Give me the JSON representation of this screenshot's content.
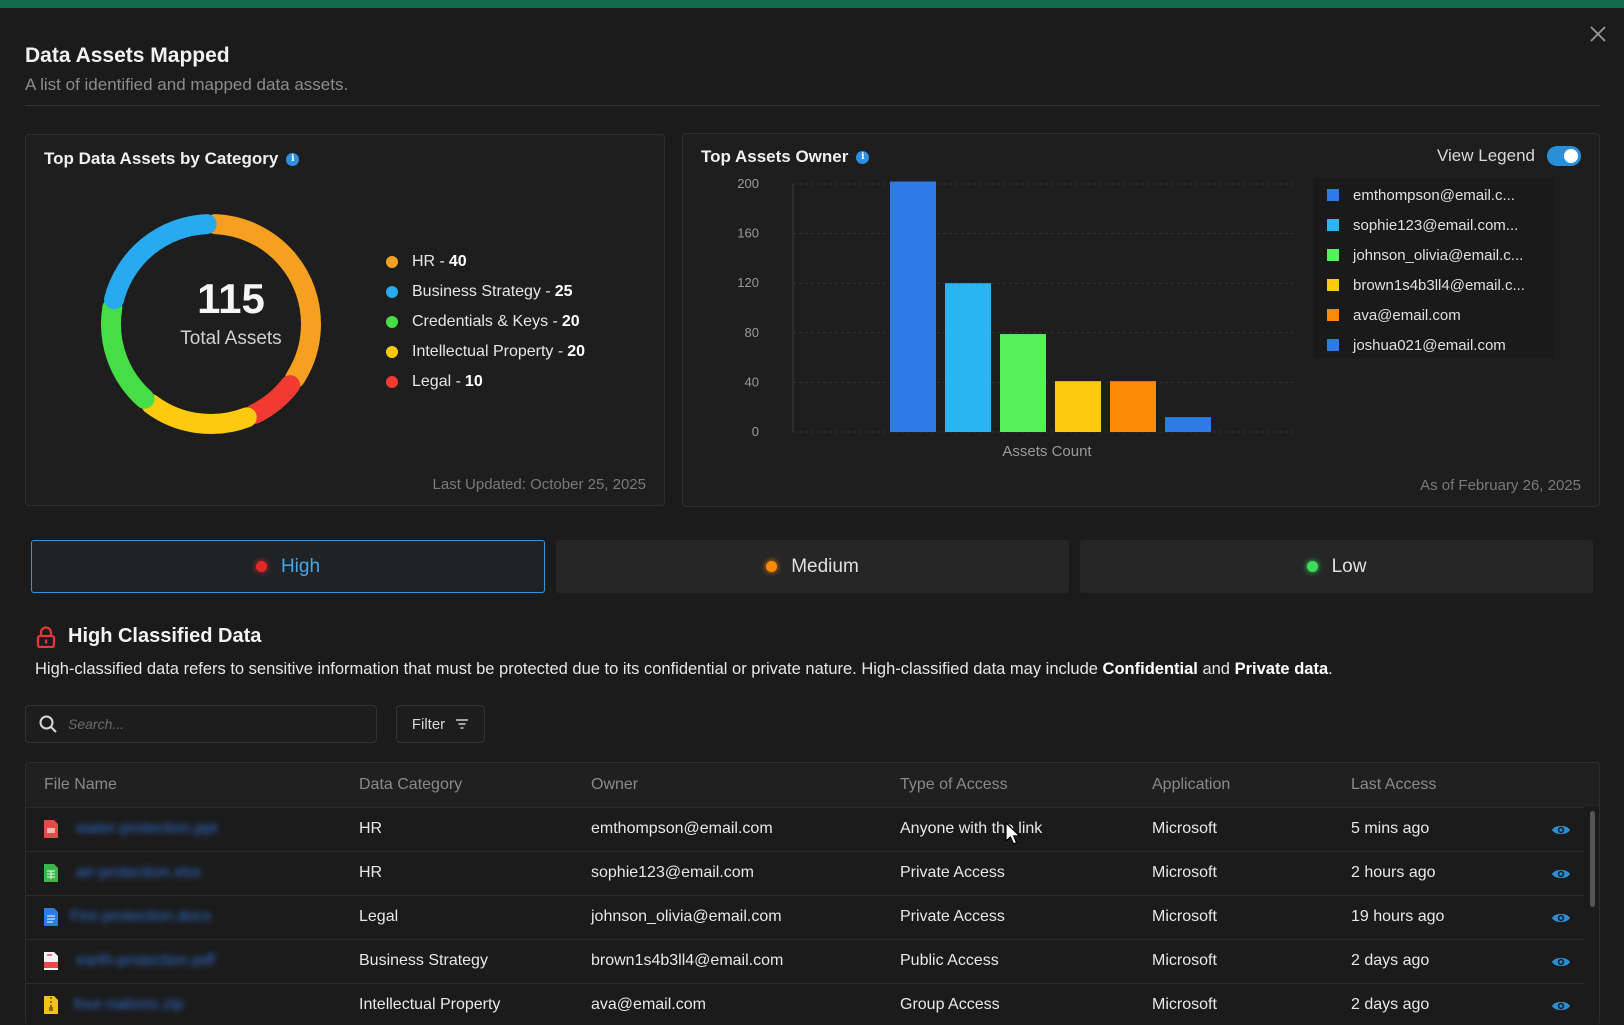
{
  "header": {
    "title": "Data Assets Mapped",
    "subtitle": "A list of identified and mapped data assets."
  },
  "category_card": {
    "title": "Top Data Assets by Category",
    "total_value": "115",
    "total_label": "Total Assets",
    "last_updated": "Last Updated:  October 25, 2025",
    "legend": [
      {
        "label": "HR - ",
        "value": "40",
        "color": "#f5a020"
      },
      {
        "label": "Business Strategy - ",
        "value": "25",
        "color": "#27aaf0"
      },
      {
        "label": "Credentials & Keys - ",
        "value": "20",
        "color": "#45df45"
      },
      {
        "label": "Intellectual Property - ",
        "value": "20",
        "color": "#fcca0e"
      },
      {
        "label": "Legal - ",
        "value": "10",
        "color": "#f23a32"
      }
    ]
  },
  "owner_card": {
    "title": "Top Assets Owner",
    "view_legend_label": "View Legend",
    "as_of": "As of February 26, 2025",
    "legend": [
      {
        "label": "emthompson@email.c...",
        "color": "#2f7be6"
      },
      {
        "label": "sophie123@email.com...",
        "color": "#29b6f0"
      },
      {
        "label": "johnson_olivia@email.c...",
        "color": "#55f05a"
      },
      {
        "label": "brown1s4b3ll4@email.c...",
        "color": "#fcca0e"
      },
      {
        "label": "ava@email.com",
        "color": "#ff8a05"
      },
      {
        "label": "joshua021@email.com",
        "color": "#2f7be6"
      }
    ]
  },
  "chart_data": [
    {
      "type": "pie",
      "title": "Top Data Assets by Category",
      "categories": [
        "HR",
        "Business Strategy",
        "Credentials & Keys",
        "Intellectual Property",
        "Legal"
      ],
      "values": [
        40,
        25,
        20,
        20,
        10
      ],
      "colors": [
        "#f5a020",
        "#27aaf0",
        "#45df45",
        "#fcca0e",
        "#f23a32"
      ],
      "legend": "right"
    },
    {
      "type": "bar",
      "title": "Top Assets Owner",
      "categories": [
        "emthompson@email.c...",
        "sophie123@email.com...",
        "johnson_olivia@email.c...",
        "brown1s4b3ll4@email.c...",
        "ava@email.com",
        "joshua021@email.com"
      ],
      "values": [
        202,
        120,
        79,
        41,
        41,
        12
      ],
      "colors": [
        "#2f7be6",
        "#29b6f0",
        "#55f05a",
        "#fcca0e",
        "#ff8a05",
        "#2f7be6"
      ],
      "xlabel": "Assets Count",
      "ylabel": "",
      "ylim": [
        0,
        200
      ],
      "yticks": [
        "200",
        "160",
        "120",
        "80",
        "40",
        "0"
      ],
      "grid": true,
      "legend": "right"
    }
  ],
  "tabs": [
    {
      "label": "High",
      "color": "#e02a2a"
    },
    {
      "label": "Medium",
      "color": "#ff8a05"
    },
    {
      "label": "Low",
      "color": "#3ddc5a"
    }
  ],
  "section": {
    "title": "High Classified Data",
    "desc_prefix": "High-classified data refers to sensitive information that must be protected due to its confidential or private nature. High-classified data may include ",
    "desc_bold1": "Confidential",
    "desc_mid": " and ",
    "desc_bold2": "Private data",
    "desc_suffix": "."
  },
  "search": {
    "placeholder": "Search..."
  },
  "filter": {
    "label": "Filter"
  },
  "table": {
    "columns": [
      "File Name",
      "Data Category",
      "Owner",
      "Type of Access",
      "Application",
      "Last Access"
    ],
    "rows": [
      {
        "file": "water-protection.ppt",
        "icon": "ppt-file-icon",
        "category": "HR",
        "owner": "emthompson@email.com",
        "access": "Anyone with the link",
        "app": "Microsoft",
        "last": "5 mins ago"
      },
      {
        "file": "air-protection.xlsx",
        "icon": "xlsx-file-icon",
        "category": "HR",
        "owner": "sophie123@email.com",
        "access": "Private Access",
        "app": "Microsoft",
        "last": "2 hours ago"
      },
      {
        "file": "Fire-protection.docx",
        "icon": "docx-file-icon",
        "category": "Legal",
        "owner": "johnson_olivia@email.com",
        "access": "Private Access",
        "app": "Microsoft",
        "last": "19 hours ago"
      },
      {
        "file": "earth-protection.pdf",
        "icon": "pdf-file-icon",
        "category": "Business Strategy",
        "owner": "brown1s4b3ll4@email.com",
        "access": "Public Access",
        "app": "Microsoft",
        "last": "2 days ago"
      },
      {
        "file": "four-nations.zip",
        "icon": "zip-file-icon",
        "category": "Intellectual Property",
        "owner": "ava@email.com",
        "access": "Group Access",
        "app": "Microsoft",
        "last": "2 days ago"
      }
    ]
  }
}
